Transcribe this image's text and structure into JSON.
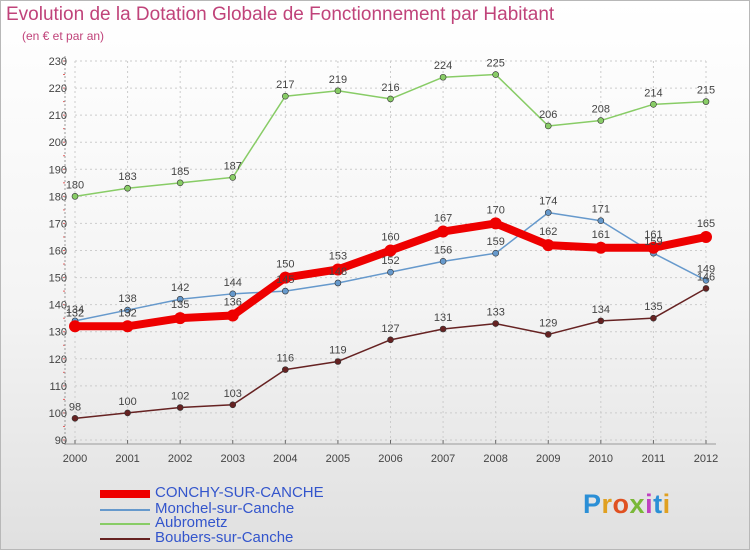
{
  "title": "Evolution de la Dotation Globale de Fonctionnement par Habitant",
  "subtitle": "(en € et par an)",
  "brand": {
    "letters": [
      {
        "ch": "P",
        "color": "#2b8fd6"
      },
      {
        "ch": "r",
        "color": "#e0a020"
      },
      {
        "ch": "o",
        "color": "#e05020"
      },
      {
        "ch": "x",
        "color": "#7ab838"
      },
      {
        "ch": "i",
        "color": "#c040c0"
      },
      {
        "ch": "t",
        "color": "#2b8fd6"
      },
      {
        "ch": "i",
        "color": "#e0a020"
      }
    ]
  },
  "chart_data": {
    "type": "line",
    "title": "Evolution de la Dotation Globale de Fonctionnement par Habitant",
    "subtitle": "(en € et par an)",
    "xlabel": "",
    "ylabel": "",
    "x": [
      "2000",
      "2001",
      "2002",
      "2003",
      "2004",
      "2005",
      "2006",
      "2007",
      "2008",
      "2009",
      "2010",
      "2011",
      "2012"
    ],
    "ylim": [
      90,
      230
    ],
    "yticks": [
      90,
      100,
      110,
      120,
      130,
      140,
      150,
      160,
      170,
      180,
      190,
      200,
      210,
      220,
      230
    ],
    "grid": true,
    "legend_position": "bottom-left",
    "series": [
      {
        "name": "CONCHY-SUR-CANCHE",
        "color": "#ee0000",
        "values": [
          132,
          132,
          135,
          136,
          150,
          153,
          160,
          167,
          170,
          162,
          161,
          161,
          165
        ]
      },
      {
        "name": "Monchel-sur-Canche",
        "color": "#6699cc",
        "values": [
          134,
          138,
          142,
          144,
          145,
          148,
          152,
          156,
          159,
          174,
          171,
          159,
          149
        ]
      },
      {
        "name": "Aubrometz",
        "color": "#88cc66",
        "values": [
          180,
          183,
          185,
          187,
          217,
          219,
          216,
          224,
          225,
          206,
          208,
          214,
          215
        ]
      },
      {
        "name": "Boubers-sur-Canche",
        "color": "#662222",
        "values": [
          98,
          100,
          102,
          103,
          116,
          119,
          127,
          131,
          133,
          129,
          134,
          135,
          146
        ]
      }
    ]
  }
}
